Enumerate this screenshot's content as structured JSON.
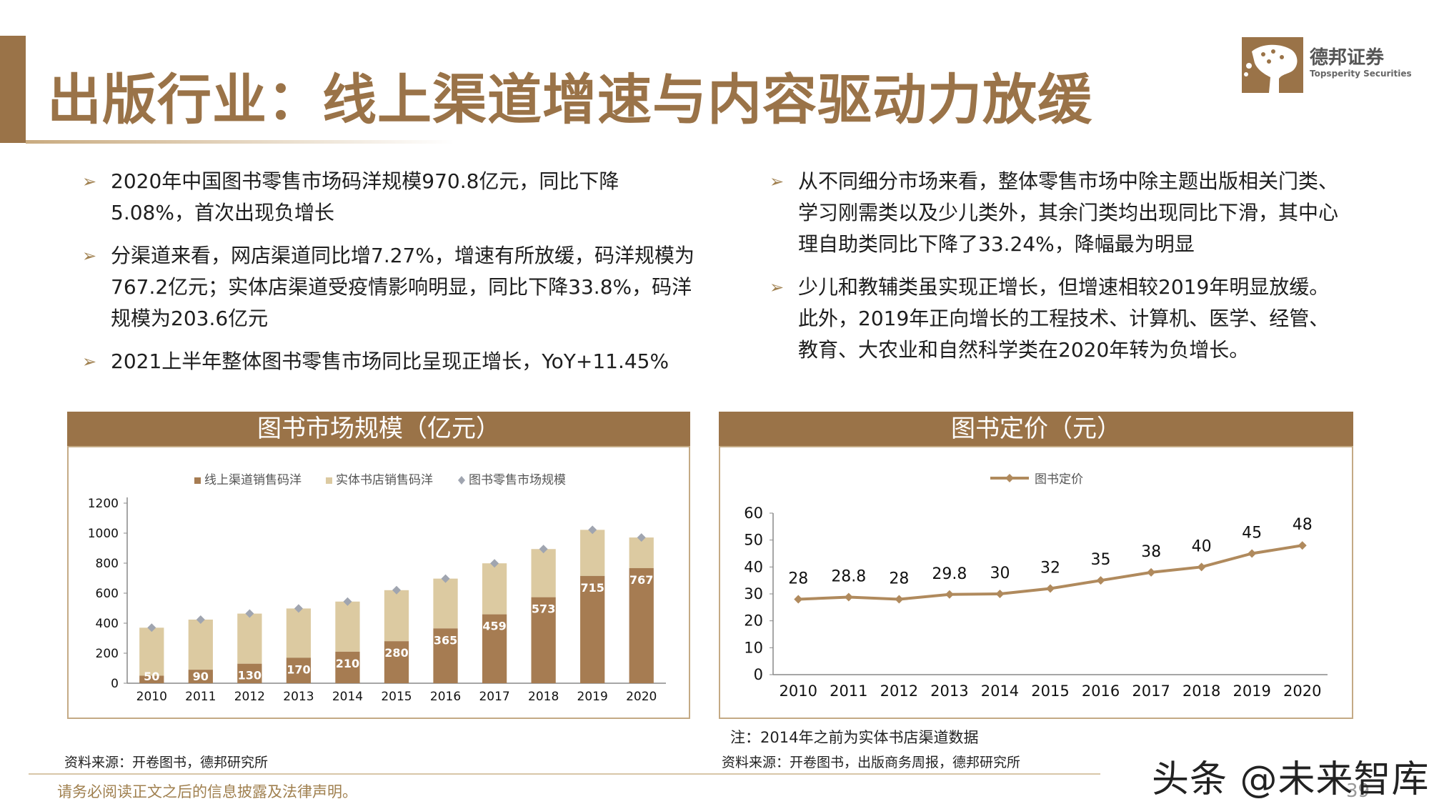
{
  "header": {
    "title": "出版行业：线上渠道增速与内容驱动力放缓",
    "logo": {
      "name": "德邦证券",
      "english": "Topsperity Securities",
      "color": "#9a7348"
    }
  },
  "bullets_left": [
    "2020年中国图书零售市场码洋规模970.8亿元，同比下降5.08%，首次出现负增长",
    "分渠道来看，网店渠道同比增7.27%，增速有所放缓，码洋规模为767.2亿元；实体店渠道受疫情影响明显，同比下降33.8%，码洋规模为203.6亿元",
    "2021上半年整体图书零售市场同比呈现正增长，YoY+11.45%"
  ],
  "bullets_right": [
    "从不同细分市场来看，整体零售市场中除主题出版相关门类、学习刚需类以及少儿类外，其余门类均出现同比下滑，其中心理自助类同比下降了33.24%，降幅最为明显",
    "少儿和教辅类虽实现正增长，但增速相较2019年明显放缓。此外，2019年正向增长的工程技术、计算机、医学、经管、教育、大农业和自然科学类在2020年转为负增长。"
  ],
  "bullet_marker": "➢",
  "chart_data": [
    {
      "type": "bar",
      "title": "图书市场规模（亿元）",
      "categories": [
        "2010",
        "2011",
        "2012",
        "2013",
        "2014",
        "2015",
        "2016",
        "2017",
        "2018",
        "2019",
        "2020"
      ],
      "series": [
        {
          "name": "线上渠道销售码洋",
          "color": "#a67c52",
          "values": [
            50,
            90,
            130,
            170,
            210,
            280,
            365,
            459,
            573,
            715,
            767
          ],
          "labels": [
            "50",
            "90",
            "130",
            "170",
            "210",
            "280",
            "365",
            "459",
            "573",
            "715",
            "767"
          ]
        },
        {
          "name": "实体书店销售码洋",
          "color": "#dccaa1",
          "values": [
            320,
            334,
            334,
            328,
            334,
            340,
            332,
            340,
            321,
            307,
            204
          ]
        },
        {
          "name": "图书零售市场规模",
          "color": "#a0a5b0",
          "values": [
            370,
            424,
            464,
            498,
            544,
            620,
            697,
            799,
            894,
            1022,
            971
          ]
        }
      ],
      "ylim": [
        0,
        1200
      ],
      "yticks": [
        "0",
        "200",
        "400",
        "600",
        "800",
        "1000",
        "1200"
      ],
      "legend_position": "top"
    },
    {
      "type": "line",
      "title": "图书定价（元）",
      "categories": [
        "2010",
        "2011",
        "2012",
        "2013",
        "2014",
        "2015",
        "2016",
        "2017",
        "2018",
        "2019",
        "2020"
      ],
      "series": [
        {
          "name": "图书定价",
          "color": "#b08a5d",
          "values": [
            28,
            28.8,
            28,
            29.8,
            30,
            32,
            35,
            38,
            40,
            45,
            48
          ],
          "labels": [
            "28",
            "28.8",
            "28",
            "29.8",
            "30",
            "32",
            "35",
            "38",
            "40",
            "45",
            "48"
          ]
        }
      ],
      "ylim": [
        0,
        60
      ],
      "yticks": [
        "0",
        "10",
        "20",
        "30",
        "40",
        "50",
        "60"
      ],
      "legend_position": "top"
    }
  ],
  "left_panel": {
    "source": "资料来源：开卷图书，德邦研究所"
  },
  "right_panel": {
    "note": "注：2014年之前为实体书店渠道数据",
    "source": "资料来源：开卷图书，出版商务周报，德邦研究所"
  },
  "footer": {
    "disclaimer": "请务必阅读正文之后的信息披露及法律声明。",
    "page_number": "39",
    "watermark": "头条 @未来智库"
  }
}
